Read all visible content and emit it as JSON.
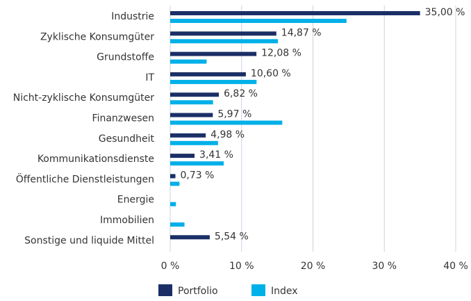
{
  "chart_data": {
    "type": "hbar",
    "categories": [
      "Industrie",
      "Zyklische Konsumgüter",
      "Grundstoffe",
      "IT",
      "Nicht-zyklische Konsumgüter",
      "Finanzwesen",
      "Gesundheit",
      "Kommunikationsdienste",
      "Öffentliche Dienstleistungen",
      "Energie",
      "Immobilien",
      "Sonstige und liquide Mittel"
    ],
    "series": [
      {
        "name": "Portfolio",
        "color": "#1b2f66",
        "values": [
          35.0,
          14.87,
          12.08,
          10.6,
          6.82,
          5.97,
          4.98,
          3.41,
          0.73,
          null,
          null,
          5.54
        ],
        "value_labels": [
          "35,00 %",
          "14,87 %",
          "12,08 %",
          "10,60 %",
          "6,82 %",
          "5,97 %",
          "4,98 %",
          "3,41 %",
          "0,73 %",
          null,
          null,
          "5,54 %"
        ]
      },
      {
        "name": "Index",
        "color": "#00b0e8",
        "values": [
          24.7,
          15.1,
          5.1,
          12.1,
          6.0,
          15.7,
          6.7,
          7.5,
          1.3,
          0.8,
          2.0,
          null
        ]
      }
    ],
    "xlim": [
      0,
      40
    ],
    "xticks": [
      {
        "value": 0,
        "label": "0 %"
      },
      {
        "value": 10,
        "label": "10 %"
      },
      {
        "value": 20,
        "label": "20 %"
      },
      {
        "value": 30,
        "label": "30 %"
      },
      {
        "value": 40,
        "label": "40 %"
      }
    ],
    "grid": true,
    "legend": "bottom"
  }
}
